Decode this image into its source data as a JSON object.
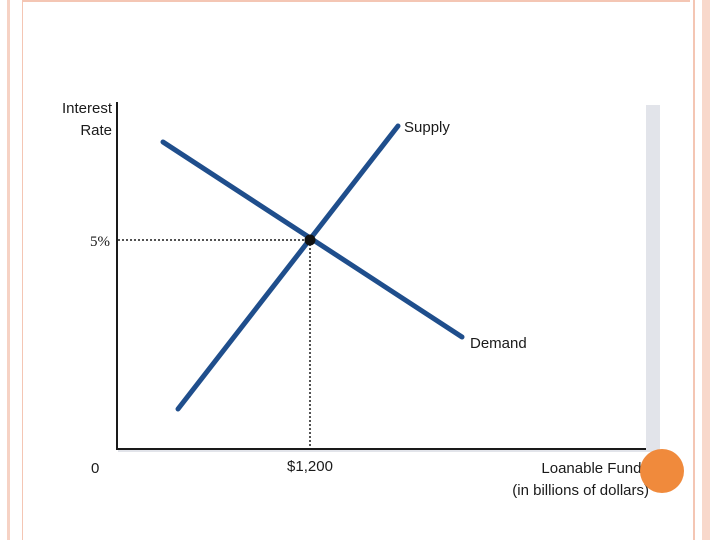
{
  "diagram": {
    "y_axis_label_line1": "Interest",
    "y_axis_label_line2": "Rate",
    "x_axis_label_line1": "Loanable Funds",
    "x_axis_label_line2": "(in billions of dollars)",
    "origin_label": "0",
    "supply_label": "Supply",
    "demand_label": "Demand",
    "equilibrium_rate_label": "5%",
    "equilibrium_quantity_label": "$1,200"
  },
  "colors": {
    "curve": "#1f4e8c",
    "axis": "#1a1a1a",
    "frame": "#f4c6b4",
    "accent": "#f08a3c",
    "panel_shadow": "#e2e4ea"
  }
}
